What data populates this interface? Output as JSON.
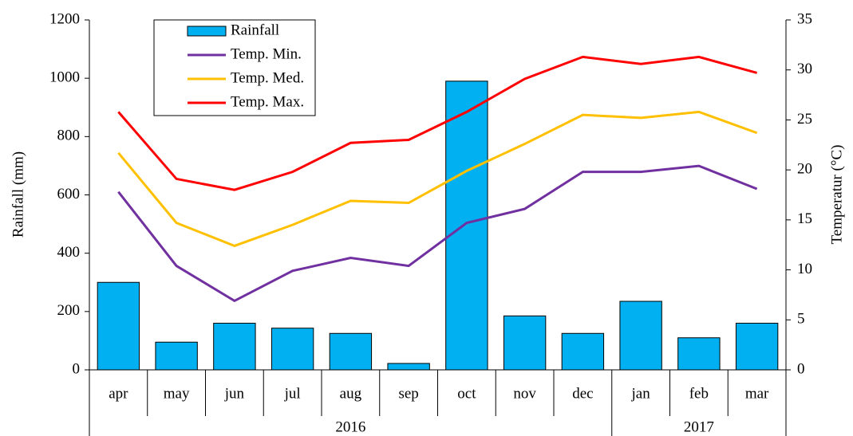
{
  "chart_data": {
    "type": "bar_line",
    "categories": [
      "apr",
      "may",
      "jun",
      "jul",
      "aug",
      "sep",
      "oct",
      "nov",
      "dec",
      "jan",
      "feb",
      "mar"
    ],
    "years": [
      "2016",
      "2016",
      "2016",
      "2016",
      "2016",
      "2016",
      "2016",
      "2016",
      "2016",
      "2017",
      "2017",
      "2017"
    ],
    "ylabel": "Rainfall  (mm)",
    "y2label": "Temperatur  (°C)",
    "ylim": [
      0,
      1200
    ],
    "yticks": [
      0,
      200,
      400,
      600,
      800,
      1000,
      1200
    ],
    "y2lim": [
      0,
      35
    ],
    "y2ticks": [
      0,
      5,
      10,
      15,
      20,
      25,
      30,
      35
    ],
    "series": [
      {
        "name": "Rainfall",
        "type": "bar",
        "color": "#00b0f0",
        "values": [
          300,
          95,
          160,
          143,
          125,
          22,
          990,
          185,
          125,
          235,
          110,
          160
        ]
      },
      {
        "name": "Temp. Min.",
        "type": "line",
        "axis": "y2",
        "color": "#7030a0",
        "values": [
          17.8,
          10.4,
          6.9,
          9.9,
          11.2,
          10.4,
          14.7,
          16.1,
          19.8,
          19.8,
          20.4,
          18.1
        ]
      },
      {
        "name": "Temp. Med.",
        "type": "line",
        "axis": "y2",
        "color": "#ffc000",
        "values": [
          21.7,
          14.7,
          12.4,
          14.5,
          16.9,
          16.7,
          19.9,
          22.6,
          25.5,
          25.2,
          25.8,
          23.7
        ]
      },
      {
        "name": "Temp. Max.",
        "type": "line",
        "axis": "y2",
        "color": "#ff0000",
        "values": [
          25.8,
          19.1,
          18.0,
          19.8,
          22.7,
          23.0,
          25.8,
          29.1,
          31.3,
          30.6,
          31.3,
          29.7
        ]
      }
    ],
    "legend": "upper-left"
  }
}
